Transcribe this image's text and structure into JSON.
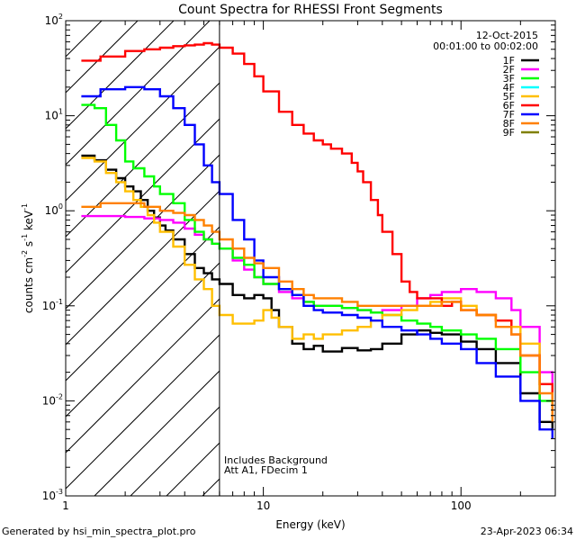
{
  "chart_data": {
    "type": "line",
    "title": "Count Spectra for RHESSI Front Segments",
    "xlabel": "Energy (keV)",
    "ylabel_parts": [
      "counts cm",
      "-2",
      " s",
      "-1",
      " keV",
      "-1"
    ],
    "x_scale": "log",
    "y_scale": "log",
    "xlim": [
      1,
      300
    ],
    "ylim": [
      0.001,
      100
    ],
    "x_tick_labels": [
      {
        "value": 10,
        "label": "10"
      },
      {
        "value": 100,
        "label": "100"
      },
      {
        "value": 1,
        "label": "1"
      }
    ],
    "y_tick_labels": [
      {
        "value": 0.001,
        "base": "10",
        "exp": "-3"
      },
      {
        "value": 0.01,
        "base": "10",
        "exp": "-2"
      },
      {
        "value": 0.1,
        "base": "10",
        "exp": "-1"
      },
      {
        "value": 1,
        "base": "10",
        "exp": "0"
      },
      {
        "value": 10,
        "base": "10",
        "exp": "1"
      },
      {
        "value": 100,
        "base": "10",
        "exp": "2"
      }
    ],
    "date": "12-Oct-2015",
    "time_range": "00:01:00 to 00:02:00",
    "attenuator_boundary_energy": 6,
    "annotations": [
      "Includes Background",
      "Att A1, FDecim  1"
    ],
    "series": [
      {
        "name": "1F",
        "color": "#000000",
        "points": [
          [
            1.2,
            3.8
          ],
          [
            1.4,
            3.4
          ],
          [
            1.6,
            2.7
          ],
          [
            1.8,
            2.2
          ],
          [
            2,
            1.8
          ],
          [
            2.2,
            1.6
          ],
          [
            2.4,
            1.3
          ],
          [
            2.6,
            1.0
          ],
          [
            2.8,
            0.85
          ],
          [
            3,
            0.7
          ],
          [
            3.2,
            0.62
          ],
          [
            3.5,
            0.5
          ],
          [
            4,
            0.35
          ],
          [
            4.5,
            0.25
          ],
          [
            5,
            0.22
          ],
          [
            5.5,
            0.19
          ],
          [
            6,
            0.17
          ],
          [
            7,
            0.13
          ],
          [
            8,
            0.12
          ],
          [
            9,
            0.13
          ],
          [
            10,
            0.12
          ],
          [
            11,
            0.09
          ],
          [
            12,
            0.06
          ],
          [
            14,
            0.04
          ],
          [
            16,
            0.035
          ],
          [
            18,
            0.038
          ],
          [
            20,
            0.033
          ],
          [
            25,
            0.036
          ],
          [
            30,
            0.034
          ],
          [
            35,
            0.035
          ],
          [
            40,
            0.04
          ],
          [
            50,
            0.05
          ],
          [
            60,
            0.055
          ],
          [
            70,
            0.052
          ],
          [
            80,
            0.05
          ],
          [
            100,
            0.042
          ],
          [
            120,
            0.035
          ],
          [
            150,
            0.025
          ],
          [
            200,
            0.012
          ],
          [
            250,
            0.006
          ],
          [
            290,
            0.005
          ]
        ]
      },
      {
        "name": "2F",
        "color": "#ff00ff",
        "points": [
          [
            1.2,
            0.88
          ],
          [
            1.5,
            0.88
          ],
          [
            2,
            0.86
          ],
          [
            2.5,
            0.83
          ],
          [
            3,
            0.8
          ],
          [
            3.5,
            0.75
          ],
          [
            4,
            0.65
          ],
          [
            4.5,
            0.56
          ],
          [
            5,
            0.5
          ],
          [
            5.5,
            0.45
          ],
          [
            6,
            0.4
          ],
          [
            7,
            0.3
          ],
          [
            8,
            0.24
          ],
          [
            9,
            0.2
          ],
          [
            10,
            0.17
          ],
          [
            12,
            0.14
          ],
          [
            14,
            0.12
          ],
          [
            16,
            0.11
          ],
          [
            18,
            0.1
          ],
          [
            20,
            0.1
          ],
          [
            25,
            0.095
          ],
          [
            30,
            0.09
          ],
          [
            35,
            0.085
          ],
          [
            40,
            0.09
          ],
          [
            50,
            0.1
          ],
          [
            60,
            0.12
          ],
          [
            70,
            0.13
          ],
          [
            80,
            0.14
          ],
          [
            100,
            0.15
          ],
          [
            120,
            0.14
          ],
          [
            150,
            0.12
          ],
          [
            180,
            0.09
          ],
          [
            200,
            0.06
          ],
          [
            250,
            0.02
          ],
          [
            290,
            0.007
          ]
        ]
      },
      {
        "name": "3F",
        "color": "#00ff00",
        "points": [
          [
            1.2,
            13
          ],
          [
            1.4,
            12
          ],
          [
            1.6,
            8
          ],
          [
            1.8,
            5.5
          ],
          [
            2,
            3.3
          ],
          [
            2.2,
            2.8
          ],
          [
            2.5,
            2.3
          ],
          [
            2.8,
            1.8
          ],
          [
            3,
            1.5
          ],
          [
            3.5,
            1.2
          ],
          [
            4,
            0.8
          ],
          [
            4.5,
            0.6
          ],
          [
            5,
            0.5
          ],
          [
            5.5,
            0.45
          ],
          [
            6,
            0.4
          ],
          [
            7,
            0.32
          ],
          [
            8,
            0.27
          ],
          [
            9,
            0.2
          ],
          [
            10,
            0.17
          ],
          [
            12,
            0.15
          ],
          [
            14,
            0.13
          ],
          [
            16,
            0.11
          ],
          [
            18,
            0.1
          ],
          [
            20,
            0.1
          ],
          [
            25,
            0.095
          ],
          [
            30,
            0.09
          ],
          [
            35,
            0.085
          ],
          [
            40,
            0.08
          ],
          [
            50,
            0.07
          ],
          [
            60,
            0.065
          ],
          [
            70,
            0.06
          ],
          [
            80,
            0.055
          ],
          [
            100,
            0.05
          ],
          [
            120,
            0.045
          ],
          [
            150,
            0.035
          ],
          [
            200,
            0.02
          ],
          [
            250,
            0.01
          ],
          [
            290,
            0.006
          ]
        ]
      },
      {
        "name": "4F",
        "color": "#00ffff",
        "points": []
      },
      {
        "name": "5F",
        "color": "#ffbf00",
        "points": [
          [
            1.2,
            3.6
          ],
          [
            1.4,
            3.3
          ],
          [
            1.6,
            2.5
          ],
          [
            1.8,
            2.0
          ],
          [
            2,
            1.6
          ],
          [
            2.2,
            1.3
          ],
          [
            2.4,
            1.1
          ],
          [
            2.6,
            0.9
          ],
          [
            2.8,
            0.75
          ],
          [
            3,
            0.6
          ],
          [
            3.5,
            0.42
          ],
          [
            4,
            0.27
          ],
          [
            4.5,
            0.19
          ],
          [
            5,
            0.15
          ],
          [
            5.5,
            0.1
          ],
          [
            6,
            0.08
          ],
          [
            7,
            0.065
          ],
          [
            8,
            0.065
          ],
          [
            9,
            0.07
          ],
          [
            10,
            0.09
          ],
          [
            11,
            0.075
          ],
          [
            12,
            0.06
          ],
          [
            14,
            0.045
          ],
          [
            16,
            0.05
          ],
          [
            18,
            0.045
          ],
          [
            20,
            0.05
          ],
          [
            25,
            0.055
          ],
          [
            30,
            0.06
          ],
          [
            35,
            0.07
          ],
          [
            40,
            0.08
          ],
          [
            50,
            0.09
          ],
          [
            60,
            0.1
          ],
          [
            70,
            0.11
          ],
          [
            80,
            0.12
          ],
          [
            100,
            0.1
          ],
          [
            120,
            0.08
          ],
          [
            150,
            0.07
          ],
          [
            180,
            0.06
          ],
          [
            200,
            0.04
          ],
          [
            250,
            0.015
          ],
          [
            290,
            0.006
          ]
        ]
      },
      {
        "name": "6F",
        "color": "#ff0000",
        "points": [
          [
            1.2,
            38
          ],
          [
            1.5,
            42
          ],
          [
            2,
            48
          ],
          [
            2.5,
            50
          ],
          [
            3,
            52
          ],
          [
            3.5,
            54
          ],
          [
            4,
            55
          ],
          [
            4.5,
            56
          ],
          [
            5,
            58
          ],
          [
            5.5,
            56
          ],
          [
            6,
            52
          ],
          [
            7,
            45
          ],
          [
            8,
            35
          ],
          [
            9,
            26
          ],
          [
            10,
            18
          ],
          [
            12,
            11
          ],
          [
            14,
            8
          ],
          [
            16,
            6.5
          ],
          [
            18,
            5.5
          ],
          [
            20,
            5
          ],
          [
            22,
            4.5
          ],
          [
            25,
            4
          ],
          [
            28,
            3.2
          ],
          [
            30,
            2.6
          ],
          [
            32,
            2
          ],
          [
            35,
            1.3
          ],
          [
            38,
            0.9
          ],
          [
            40,
            0.6
          ],
          [
            45,
            0.35
          ],
          [
            50,
            0.18
          ],
          [
            55,
            0.14
          ],
          [
            60,
            0.12
          ],
          [
            70,
            0.12
          ],
          [
            80,
            0.1
          ],
          [
            90,
            0.11
          ],
          [
            100,
            0.09
          ],
          [
            120,
            0.08
          ],
          [
            150,
            0.07
          ],
          [
            180,
            0.05
          ],
          [
            200,
            0.03
          ],
          [
            250,
            0.015
          ],
          [
            290,
            0.01
          ]
        ]
      },
      {
        "name": "7F",
        "color": "#0000ff",
        "points": [
          [
            1.2,
            16
          ],
          [
            1.5,
            19
          ],
          [
            2,
            20
          ],
          [
            2.5,
            19
          ],
          [
            3,
            16
          ],
          [
            3.5,
            12
          ],
          [
            4,
            8
          ],
          [
            4.5,
            5
          ],
          [
            5,
            3
          ],
          [
            5.5,
            2
          ],
          [
            6,
            1.5
          ],
          [
            7,
            0.8
          ],
          [
            8,
            0.5
          ],
          [
            9,
            0.3
          ],
          [
            10,
            0.2
          ],
          [
            12,
            0.15
          ],
          [
            14,
            0.13
          ],
          [
            16,
            0.1
          ],
          [
            18,
            0.09
          ],
          [
            20,
            0.085
          ],
          [
            25,
            0.08
          ],
          [
            30,
            0.075
          ],
          [
            35,
            0.07
          ],
          [
            40,
            0.06
          ],
          [
            50,
            0.055
          ],
          [
            60,
            0.05
          ],
          [
            70,
            0.045
          ],
          [
            80,
            0.04
          ],
          [
            100,
            0.035
          ],
          [
            120,
            0.025
          ],
          [
            150,
            0.018
          ],
          [
            200,
            0.01
          ],
          [
            250,
            0.005
          ],
          [
            290,
            0.004
          ]
        ]
      },
      {
        "name": "8F",
        "color": "#ff8000",
        "points": [
          [
            1.2,
            1.1
          ],
          [
            1.5,
            1.2
          ],
          [
            2,
            1.2
          ],
          [
            2.5,
            1.1
          ],
          [
            3,
            1.0
          ],
          [
            3.5,
            0.95
          ],
          [
            4,
            0.9
          ],
          [
            4.5,
            0.8
          ],
          [
            5,
            0.7
          ],
          [
            5.5,
            0.6
          ],
          [
            6,
            0.5
          ],
          [
            7,
            0.4
          ],
          [
            8,
            0.32
          ],
          [
            9,
            0.28
          ],
          [
            10,
            0.25
          ],
          [
            12,
            0.18
          ],
          [
            14,
            0.15
          ],
          [
            16,
            0.13
          ],
          [
            18,
            0.12
          ],
          [
            20,
            0.12
          ],
          [
            25,
            0.11
          ],
          [
            30,
            0.1
          ],
          [
            35,
            0.1
          ],
          [
            40,
            0.1
          ],
          [
            50,
            0.1
          ],
          [
            60,
            0.1
          ],
          [
            70,
            0.1
          ],
          [
            80,
            0.11
          ],
          [
            100,
            0.09
          ],
          [
            120,
            0.08
          ],
          [
            150,
            0.06
          ],
          [
            180,
            0.05
          ],
          [
            200,
            0.03
          ],
          [
            250,
            0.012
          ],
          [
            290,
            0.006
          ]
        ]
      },
      {
        "name": "9F",
        "color": "#808000",
        "points": []
      }
    ]
  },
  "footer": {
    "generated_by": "Generated by hsi_min_spectra_plot.pro",
    "timestamp": "23-Apr-2023 06:34"
  }
}
